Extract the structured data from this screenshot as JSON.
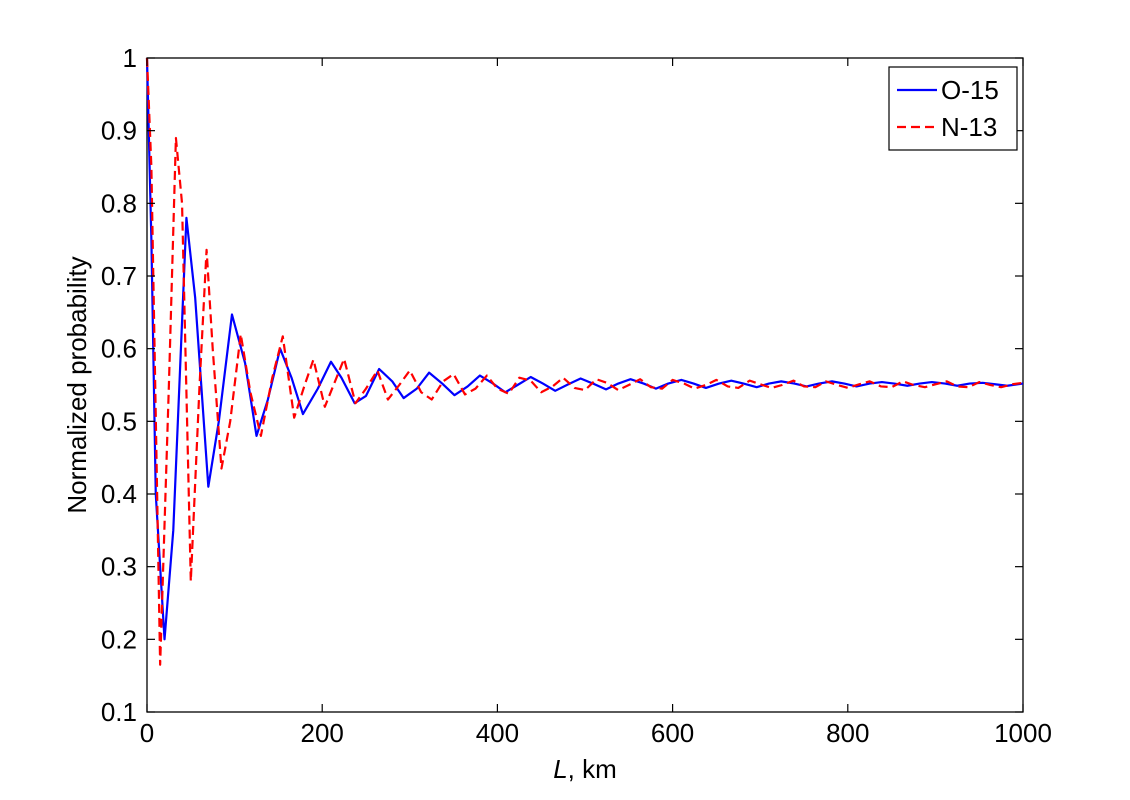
{
  "chart_data": {
    "type": "line",
    "title": "",
    "xlabel_italic": "L",
    "xlabel_rest": ", km",
    "ylabel": "Normalized probability",
    "xlim": [
      0,
      1000
    ],
    "ylim": [
      0.1,
      1.0
    ],
    "xticks": [
      "0",
      "200",
      "400",
      "600",
      "800",
      "1000"
    ],
    "yticks": [
      "0.1",
      "0.2",
      "0.3",
      "0.4",
      "0.5",
      "0.6",
      "0.7",
      "0.8",
      "0.9",
      "1"
    ],
    "grid": false,
    "legend_position": "top-right",
    "series": [
      {
        "name": "O-15",
        "color": "#0000ff",
        "style": "solid",
        "x": [
          0,
          5,
          10,
          20,
          30,
          45,
          55,
          70,
          82,
          97,
          112,
          125,
          138,
          152,
          165,
          178,
          195,
          210,
          222,
          237,
          250,
          265,
          280,
          293,
          308,
          322,
          337,
          351,
          366,
          380,
          395,
          409,
          423,
          438,
          452,
          466,
          481,
          495,
          509,
          524,
          538,
          552,
          567,
          581,
          595,
          610,
          624,
          638,
          653,
          667,
          681,
          696,
          710,
          724,
          739,
          753,
          767,
          782,
          796,
          810,
          825,
          839,
          853,
          868,
          882,
          896,
          911,
          925,
          939,
          954,
          968,
          982,
          1000
        ],
        "y": [
          1.0,
          0.75,
          0.4,
          0.2,
          0.35,
          0.78,
          0.67,
          0.41,
          0.5,
          0.647,
          0.58,
          0.48,
          0.53,
          0.6,
          0.56,
          0.51,
          0.545,
          0.582,
          0.56,
          0.525,
          0.535,
          0.572,
          0.555,
          0.532,
          0.545,
          0.567,
          0.552,
          0.536,
          0.548,
          0.563,
          0.552,
          0.54,
          0.55,
          0.561,
          0.552,
          0.542,
          0.551,
          0.559,
          0.552,
          0.544,
          0.552,
          0.558,
          0.552,
          0.545,
          0.552,
          0.557,
          0.552,
          0.546,
          0.552,
          0.556,
          0.552,
          0.547,
          0.552,
          0.555,
          0.552,
          0.548,
          0.552,
          0.555,
          0.552,
          0.548,
          0.552,
          0.554,
          0.552,
          0.549,
          0.552,
          0.554,
          0.552,
          0.549,
          0.552,
          0.553,
          0.551,
          0.549,
          0.552
        ]
      },
      {
        "name": "N-13",
        "color": "#ff0000",
        "style": "dashed",
        "x": [
          0,
          5,
          15,
          25,
          33,
          40,
          50,
          60,
          68,
          75,
          85,
          95,
          107,
          118,
          130,
          143,
          155,
          168,
          180,
          190,
          203,
          213,
          225,
          238,
          250,
          263,
          275,
          288,
          300,
          313,
          325,
          338,
          350,
          363,
          375,
          388,
          400,
          413,
          425,
          438,
          450,
          463,
          475,
          488,
          500,
          513,
          525,
          538,
          550,
          563,
          575,
          588,
          600,
          613,
          625,
          638,
          650,
          663,
          675,
          688,
          700,
          713,
          725,
          738,
          750,
          763,
          775,
          788,
          800,
          813,
          825,
          838,
          850,
          863,
          875,
          888,
          900,
          913,
          925,
          938,
          950,
          963,
          975,
          988,
          1000
        ],
        "y": [
          1.0,
          0.85,
          0.165,
          0.55,
          0.89,
          0.8,
          0.28,
          0.55,
          0.736,
          0.6,
          0.435,
          0.5,
          0.62,
          0.54,
          0.48,
          0.56,
          0.617,
          0.505,
          0.55,
          0.585,
          0.52,
          0.55,
          0.586,
          0.525,
          0.545,
          0.57,
          0.53,
          0.55,
          0.57,
          0.54,
          0.53,
          0.555,
          0.565,
          0.537,
          0.545,
          0.563,
          0.545,
          0.538,
          0.56,
          0.556,
          0.54,
          0.548,
          0.56,
          0.546,
          0.543,
          0.558,
          0.553,
          0.543,
          0.55,
          0.558,
          0.547,
          0.545,
          0.557,
          0.552,
          0.545,
          0.55,
          0.557,
          0.548,
          0.546,
          0.556,
          0.551,
          0.546,
          0.55,
          0.556,
          0.548,
          0.547,
          0.555,
          0.55,
          0.546,
          0.551,
          0.555,
          0.548,
          0.547,
          0.555,
          0.55,
          0.547,
          0.551,
          0.555,
          0.548,
          0.547,
          0.554,
          0.55,
          0.547,
          0.551,
          0.553
        ]
      }
    ]
  }
}
